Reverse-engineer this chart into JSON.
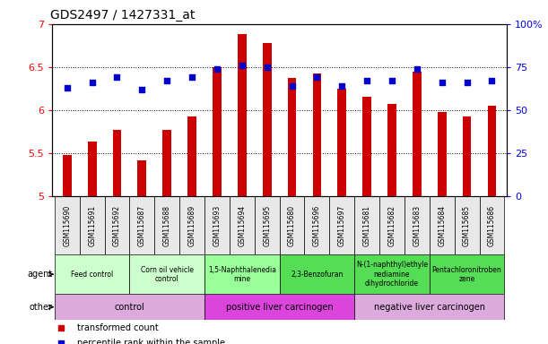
{
  "title": "GDS2497 / 1427331_at",
  "samples": [
    "GSM115690",
    "GSM115691",
    "GSM115692",
    "GSM115687",
    "GSM115688",
    "GSM115689",
    "GSM115693",
    "GSM115694",
    "GSM115695",
    "GSM115680",
    "GSM115696",
    "GSM115697",
    "GSM115681",
    "GSM115682",
    "GSM115683",
    "GSM115684",
    "GSM115685",
    "GSM115686"
  ],
  "transformed_count": [
    5.48,
    5.63,
    5.77,
    5.42,
    5.77,
    5.93,
    6.5,
    6.88,
    6.78,
    6.37,
    6.43,
    6.25,
    6.15,
    6.07,
    6.45,
    5.98,
    5.93,
    6.05
  ],
  "percentile_rank": [
    63,
    66,
    69,
    62,
    67,
    69,
    74,
    76,
    75,
    64,
    69,
    64,
    67,
    67,
    74,
    66,
    66,
    67
  ],
  "ylim_left": [
    5.0,
    7.0
  ],
  "ylim_right": [
    0,
    100
  ],
  "yticks_left": [
    5.0,
    5.5,
    6.0,
    6.5,
    7.0
  ],
  "yticks_right": [
    0,
    25,
    50,
    75,
    100
  ],
  "ytick_labels_left": [
    "5",
    "5.5",
    "6",
    "6.5",
    "7"
  ],
  "ytick_labels_right": [
    "0",
    "25",
    "50",
    "75",
    "100%"
  ],
  "hlines": [
    5.5,
    6.0,
    6.5
  ],
  "bar_color": "#cc0000",
  "dot_color": "#0000cc",
  "agent_groups": [
    {
      "label": "Feed control",
      "start": 0,
      "end": 3,
      "color": "#ccffcc"
    },
    {
      "label": "Corn oil vehicle\ncontrol",
      "start": 3,
      "end": 6,
      "color": "#ccffcc"
    },
    {
      "label": "1,5-Naphthalenedia\nmine",
      "start": 6,
      "end": 9,
      "color": "#99ff99"
    },
    {
      "label": "2,3-Benzofuran",
      "start": 9,
      "end": 12,
      "color": "#55dd55"
    },
    {
      "label": "N-(1-naphthyl)ethyle\nnediamine\ndihydrochloride",
      "start": 12,
      "end": 15,
      "color": "#55dd55"
    },
    {
      "label": "Pentachloronitroben\nzene",
      "start": 15,
      "end": 18,
      "color": "#55dd55"
    }
  ],
  "other_groups": [
    {
      "label": "control",
      "start": 0,
      "end": 6,
      "color": "#ddaadd"
    },
    {
      "label": "positive liver carcinogen",
      "start": 6,
      "end": 12,
      "color": "#dd44dd"
    },
    {
      "label": "negative liver carcinogen",
      "start": 12,
      "end": 18,
      "color": "#ddaadd"
    }
  ],
  "legend_items": [
    {
      "label": "transformed count",
      "color": "#cc0000"
    },
    {
      "label": "percentile rank within the sample",
      "color": "#0000cc"
    }
  ],
  "bar_width": 0.35,
  "n_samples": 18
}
